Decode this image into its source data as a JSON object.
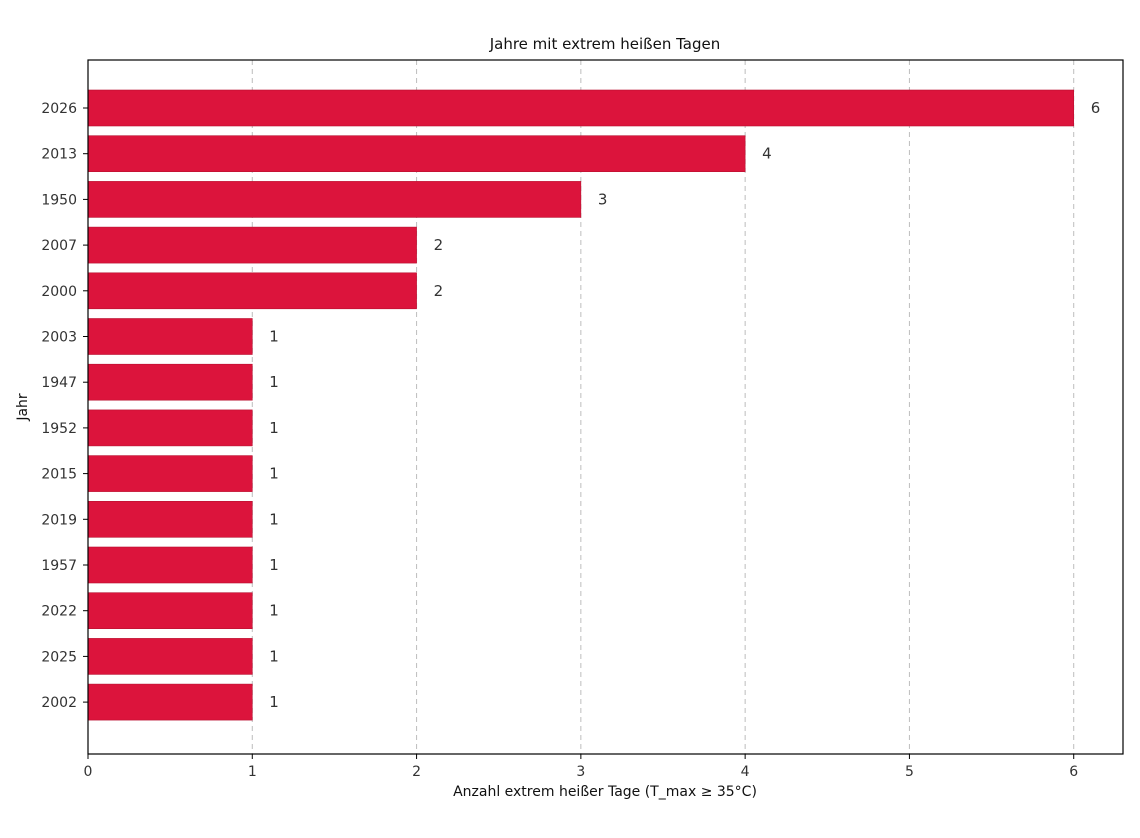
{
  "chart_data": {
    "type": "bar",
    "orientation": "horizontal",
    "title": "Jahre mit extrem heißen Tagen",
    "xlabel": "Anzahl extrem heißer Tage (T_max ≥ 35°C)",
    "ylabel": "Jahr",
    "categories": [
      "2026",
      "2013",
      "1950",
      "2007",
      "2000",
      "2003",
      "1947",
      "1952",
      "2015",
      "2019",
      "1957",
      "2022",
      "2025",
      "2002"
    ],
    "values": [
      6,
      4,
      3,
      2,
      2,
      1,
      1,
      1,
      1,
      1,
      1,
      1,
      1,
      1
    ],
    "xlim": [
      0,
      6.3
    ],
    "xticks": [
      "0",
      "1",
      "2",
      "3",
      "4",
      "5",
      "6"
    ],
    "grid": "vertical-dashed",
    "bar_color": "#dc143c",
    "data_labels": true
  }
}
